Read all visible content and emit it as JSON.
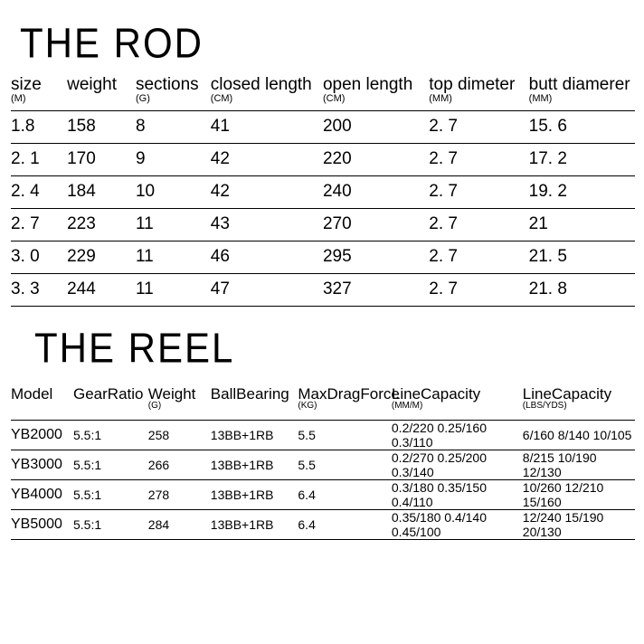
{
  "rod": {
    "title": "THE ROD",
    "columns": [
      {
        "label": "size",
        "unit": "(M)"
      },
      {
        "label": "weight",
        "unit": ""
      },
      {
        "label": "sections",
        "unit": "(G)"
      },
      {
        "label": "closed length",
        "unit": "(CM)"
      },
      {
        "label": "open length",
        "unit": "(CM)"
      },
      {
        "label": "top dimeter",
        "unit": "(MM)"
      },
      {
        "label": "butt diamerer",
        "unit": "(MM)"
      }
    ],
    "rows": [
      [
        "1.8",
        "158",
        "8",
        "41",
        "200",
        "2. 7",
        "15. 6"
      ],
      [
        "2. 1",
        "170",
        "9",
        "42",
        "220",
        "2. 7",
        "17. 2"
      ],
      [
        "2. 4",
        "184",
        "10",
        "42",
        "240",
        "2. 7",
        "19. 2"
      ],
      [
        "2. 7",
        "223",
        "11",
        "43",
        "270",
        "2. 7",
        "21"
      ],
      [
        "3. 0",
        "229",
        "11",
        "46",
        "295",
        "2. 7",
        "21. 5"
      ],
      [
        "3. 3",
        "244",
        "11",
        "47",
        "327",
        "2. 7",
        "21. 8"
      ]
    ]
  },
  "reel": {
    "title": "THE REEL",
    "columns": [
      {
        "label": "Model",
        "unit": ""
      },
      {
        "label": "GearRatio",
        "unit": ""
      },
      {
        "label": "Weight",
        "unit": "(G)"
      },
      {
        "label": "BallBearing",
        "unit": ""
      },
      {
        "label": "MaxDragForce",
        "unit": "(KG)"
      },
      {
        "label": "LineCapacity",
        "unit": "(MM/M)"
      },
      {
        "label": "LineCapacity",
        "unit": "(LBS/YDS)"
      }
    ],
    "rows": [
      [
        "YB2000",
        "5.5:1",
        "258",
        "13BB+1RB",
        "5.5",
        "0.2/220 0.25/160 0.3/110",
        "6/160 8/140 10/105"
      ],
      [
        "YB3000",
        "5.5:1",
        "266",
        "13BB+1RB",
        "5.5",
        "0.2/270 0.25/200 0.3/140",
        "8/215 10/190 12/130"
      ],
      [
        "YB4000",
        "5.5:1",
        "278",
        "13BB+1RB",
        "6.4",
        "0.3/180 0.35/150 0.4/110",
        "10/260 12/210 15/160"
      ],
      [
        "YB5000",
        "5.5:1",
        "284",
        "13BB+1RB",
        "6.4",
        "0.35/180 0.4/140 0.45/100",
        "12/240 15/190 20/130"
      ]
    ]
  },
  "style": {
    "background": "#ffffff",
    "text_color": "#000000",
    "title_font": "Impact",
    "title_fontsize": 42,
    "rod_header_fontsize": 19,
    "rod_cell_fontsize": 19,
    "reel_header_fontsize": 17,
    "reel_cell_fontsize": 14,
    "border_color": "#000000"
  }
}
